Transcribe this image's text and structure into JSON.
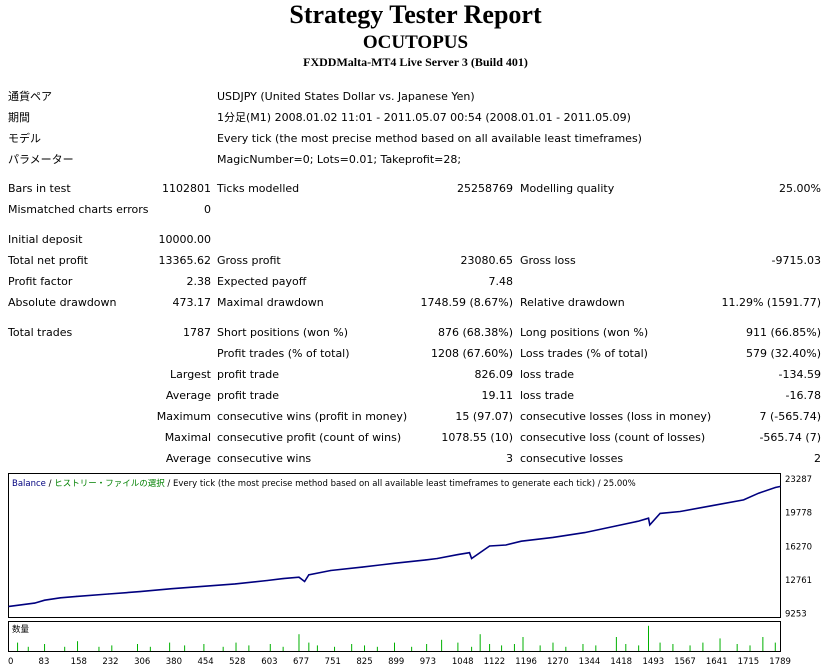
{
  "header": {
    "title": "Strategy Tester Report",
    "expert": "OCUTOPUS",
    "server": "FXDDMalta-MT4 Live Server 3 (Build 401)"
  },
  "info": [
    {
      "label": "通貨ペア",
      "value": "USDJPY (United States Dollar vs. Japanese Yen)"
    },
    {
      "label": "期間",
      "value": "1分足(M1) 2008.01.02 11:01 - 2011.05.07 00:54 (2008.01.01 - 2011.05.09)"
    },
    {
      "label": "モデル",
      "value": "Every tick (the most precise method based on all available least timeframes)"
    },
    {
      "label": "パラメーター",
      "value": "MagicNumber=0; Lots=0.01; Takeprofit=28;"
    }
  ],
  "stats": {
    "bars_label": "Bars in test",
    "bars_value": "1102801",
    "ticks_label": "Ticks modelled",
    "ticks_value": "25258769",
    "quality_label": "Modelling quality",
    "quality_value": "25.00%",
    "mismatch_label": "Mismatched charts errors",
    "mismatch_value": "0",
    "deposit_label": "Initial deposit",
    "deposit_value": "10000.00",
    "netprofit_label": "Total net profit",
    "netprofit_value": "13365.62",
    "grossprofit_label": "Gross profit",
    "grossprofit_value": "23080.65",
    "grossloss_label": "Gross loss",
    "grossloss_value": "-9715.03",
    "pf_label": "Profit factor",
    "pf_value": "2.38",
    "payoff_label": "Expected payoff",
    "payoff_value": "7.48",
    "absdd_label": "Absolute drawdown",
    "absdd_value": "473.17",
    "maxdd_label": "Maximal drawdown",
    "maxdd_value": "1748.59 (8.67%)",
    "reldd_label": "Relative drawdown",
    "reldd_value": "11.29% (1591.77)",
    "trades_label": "Total trades",
    "trades_value": "1787",
    "short_label": "Short positions (won %)",
    "short_value": "876 (68.38%)",
    "long_label": "Long positions (won %)",
    "long_value": "911 (66.85%)",
    "ptrades_label": "Profit trades (% of total)",
    "ptrades_value": "1208 (67.60%)",
    "ltrades_label": "Loss trades (% of total)",
    "ltrades_value": "579 (32.40%)",
    "largest_label": "Largest",
    "largest_profit_label": "profit trade",
    "largest_profit_value": "826.09",
    "largest_loss_label": "loss trade",
    "largest_loss_value": "-134.59",
    "average_label": "Average",
    "average_profit_label": "profit trade",
    "average_profit_value": "19.11",
    "average_loss_label": "loss trade",
    "average_loss_value": "-16.78",
    "maximum_label": "Maximum",
    "max_wins_label": "consecutive wins (profit in money)",
    "max_wins_value": "15 (97.07)",
    "max_losses_label": "consecutive losses (loss in money)",
    "max_losses_value": "7 (-565.74)",
    "maximal_label": "Maximal",
    "maximal_profit_label": "consecutive profit (count of wins)",
    "maximal_profit_value": "1078.55 (10)",
    "maximal_loss_label": "consecutive loss (count of losses)",
    "maximal_loss_value": "-565.74 (7)",
    "avg2_label": "Average",
    "avg_wins_label": "consecutive wins",
    "avg_wins_value": "3",
    "avg_losses_label": "consecutive losses",
    "avg_losses_value": "2"
  },
  "chart_legend": {
    "balance": "Balance",
    "sep1": " / ",
    "history": "ヒストリー・ファイルの選択",
    "sep2": " / ",
    "model": "Every tick (the most precise method based on all available least timeframes to generate each tick)",
    "sep3": " / ",
    "quality": "25.00%"
  },
  "volume_label": "数量",
  "colors": {
    "balance": "#00007f",
    "legend_balance": "#00007f",
    "legend_history": "#008000",
    "volume": "#00b000"
  },
  "chart_data": {
    "type": "line",
    "title": "",
    "xlabel": "",
    "ylabel": "",
    "y_ticks": [
      9253,
      12761,
      16270,
      19778,
      23287
    ],
    "ylim": [
      8900,
      23700
    ],
    "x_ticks": [
      0,
      83,
      158,
      232,
      306,
      380,
      454,
      528,
      603,
      677,
      751,
      825,
      899,
      973,
      1048,
      1122,
      1196,
      1270,
      1344,
      1418,
      1493,
      1567,
      1641,
      1715,
      1789
    ],
    "xlim": [
      0,
      1800
    ],
    "series": [
      {
        "name": "Balance",
        "x": [
          0,
          60,
          83,
          120,
          158,
          232,
          306,
          380,
          454,
          528,
          603,
          640,
          677,
          690,
          700,
          751,
          825,
          899,
          973,
          1000,
          1048,
          1075,
          1080,
          1122,
          1160,
          1196,
          1270,
          1344,
          1418,
          1470,
          1493,
          1496,
          1520,
          1567,
          1641,
          1715,
          1750,
          1789,
          1800
        ],
        "values": [
          10000,
          10350,
          10650,
          10900,
          11050,
          11300,
          11550,
          11850,
          12100,
          12350,
          12700,
          12900,
          13050,
          12600,
          13300,
          13750,
          14100,
          14500,
          14850,
          15000,
          15400,
          15600,
          15000,
          16300,
          16400,
          16800,
          17200,
          17700,
          18400,
          18900,
          19200,
          18500,
          19700,
          19900,
          20500,
          21100,
          21800,
          22400,
          22500
        ]
      },
      {
        "name": "数量",
        "x": [
          20,
          45,
          83,
          130,
          160,
          210,
          240,
          300,
          330,
          375,
          410,
          455,
          500,
          530,
          560,
          610,
          640,
          677,
          700,
          720,
          760,
          800,
          830,
          860,
          900,
          940,
          975,
          1010,
          1048,
          1080,
          1100,
          1122,
          1150,
          1180,
          1200,
          1240,
          1270,
          1300,
          1340,
          1370,
          1418,
          1440,
          1470,
          1493,
          1520,
          1550,
          1590,
          1620,
          1660,
          1700,
          1730,
          1760,
          1789
        ],
        "values": [
          0.06,
          0.03,
          0.05,
          0.03,
          0.07,
          0.03,
          0.04,
          0.05,
          0.03,
          0.06,
          0.04,
          0.05,
          0.03,
          0.06,
          0.04,
          0.05,
          0.03,
          0.12,
          0.06,
          0.04,
          0.03,
          0.05,
          0.04,
          0.03,
          0.06,
          0.03,
          0.05,
          0.08,
          0.06,
          0.03,
          0.12,
          0.05,
          0.04,
          0.05,
          0.1,
          0.04,
          0.06,
          0.03,
          0.05,
          0.04,
          0.1,
          0.05,
          0.04,
          0.18,
          0.06,
          0.05,
          0.04,
          0.06,
          0.09,
          0.05,
          0.04,
          0.1,
          0.06
        ]
      }
    ]
  }
}
